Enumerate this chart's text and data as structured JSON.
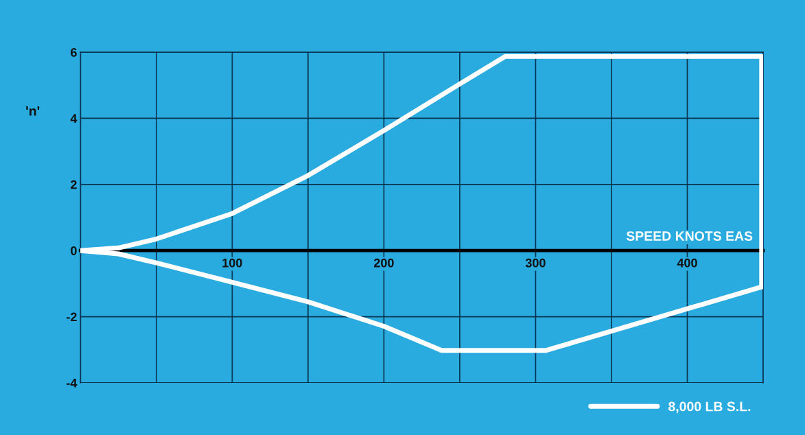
{
  "chart_data": {
    "type": "line",
    "ylabel": "'n'",
    "xlabel": "SPEED KNOTS EAS",
    "series": [
      {
        "name": "8,000 LB S.L.",
        "color": "#ffffff",
        "x": [
          0,
          25,
          50,
          100,
          150,
          200,
          250,
          280,
          449,
          449
        ],
        "values": [
          0,
          0.08,
          0.35,
          1.12,
          2.27,
          3.63,
          5.04,
          5.87,
          5.87,
          -1.1
        ]
      },
      {
        "color": "#ffffff",
        "x": [
          0,
          25,
          50,
          100,
          150,
          200,
          238,
          307,
          449
        ],
        "values": [
          0,
          -0.1,
          -0.37,
          -0.96,
          -1.55,
          -2.29,
          -3.02,
          -3.02,
          -1.1
        ]
      }
    ],
    "xlim": [
      0,
      450
    ],
    "xticks": [
      {
        "value": 0,
        "label": null
      },
      {
        "value": 50,
        "label": null
      },
      100,
      {
        "value": 150,
        "label": null
      },
      200,
      {
        "value": 250,
        "label": null
      },
      300,
      {
        "value": 350,
        "label": null
      },
      400,
      {
        "value": 450,
        "label": null
      }
    ],
    "ylim": [
      -4,
      6
    ],
    "yticks": [
      -4,
      -2,
      0,
      2,
      4,
      6
    ],
    "grid": true,
    "legend": "bottom right",
    "line_style": "solid",
    "marker": "none"
  }
}
